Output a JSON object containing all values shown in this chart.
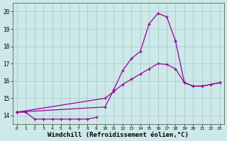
{
  "background_color": "#cce8e8",
  "grid_color": "#aacccc",
  "line_color": "#990099",
  "xlabel": "Windchill (Refroidissement éolien,°C)",
  "xlabel_fontsize": 6.5,
  "ylabel_ticks": [
    14,
    15,
    16,
    17,
    18,
    19,
    20
  ],
  "xlim": [
    -0.5,
    23.5
  ],
  "ylim": [
    13.5,
    20.5
  ],
  "series": [
    {
      "x": [
        0,
        1,
        2,
        3,
        4,
        5,
        6,
        7,
        8,
        9
      ],
      "y": [
        14.2,
        14.2,
        13.8,
        13.8,
        13.8,
        13.8,
        13.8,
        13.8,
        13.8,
        13.9
      ]
    },
    {
      "x": [
        0,
        10,
        11,
        12,
        13,
        14,
        15,
        16,
        17,
        18,
        19,
        20,
        21,
        22,
        23
      ],
      "y": [
        14.2,
        15.0,
        15.4,
        15.8,
        16.1,
        16.4,
        16.7,
        17.0,
        16.95,
        16.7,
        15.9,
        15.7,
        15.7,
        15.8,
        15.9
      ]
    },
    {
      "x": [
        0,
        10,
        11,
        12,
        13,
        14,
        15,
        16,
        17,
        18
      ],
      "y": [
        14.2,
        14.5,
        15.5,
        16.6,
        17.3,
        17.7,
        19.3,
        19.9,
        19.7,
        18.3
      ]
    },
    {
      "x": [
        18,
        19,
        20,
        21,
        22,
        23
      ],
      "y": [
        18.3,
        15.9,
        15.7,
        15.7,
        15.8,
        15.9
      ]
    }
  ]
}
